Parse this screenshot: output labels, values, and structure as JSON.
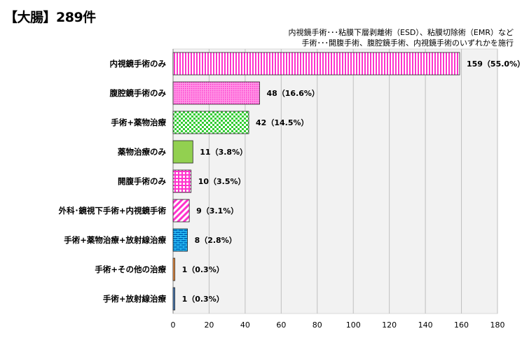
{
  "header": {
    "title": "【大腸】289件",
    "note_line1": "内視鏡手術･･･粘膜下層剥離術（ESD）、粘膜切除術（EMR）など",
    "note_line2": "手術･･･開腹手術、腹腔鏡手術、内視鏡手術のいずれかを施行"
  },
  "chart_data": {
    "type": "bar",
    "orientation": "horizontal",
    "title": "【大腸】289件",
    "xlim": [
      0,
      180
    ],
    "xticks": [
      "0",
      "20",
      "40",
      "60",
      "80",
      "100",
      "120",
      "140",
      "160",
      "180"
    ],
    "grid": true,
    "categories": [
      "内視鏡手術のみ",
      "腹腔鏡手術のみ",
      "手術+薬物治療",
      "薬物治療のみ",
      "開腹手術のみ",
      "外科･鏡視下手術+内視鏡手術",
      "手術+薬物治療+放射線治療",
      "手術+その他の治療",
      "手術+放射線治療"
    ],
    "values": [
      159,
      48,
      42,
      11,
      10,
      9,
      8,
      1,
      1
    ],
    "labels": [
      "159（55.0%）",
      "48（16.6%）",
      "42（14.5%）",
      "11（3.8%）",
      "10（3.5%）",
      "9（3.1%）",
      "8（2.8%）",
      "1（0.3%）",
      "1（0.3%）"
    ],
    "colors": [
      "#ff33cc",
      "#ff33cc",
      "#33cc33",
      "#92d050",
      "#ff33cc",
      "#ff33cc",
      "#0070c0",
      "#f79646",
      "#4f81bd"
    ],
    "patterns": [
      "vertical-stripes",
      "dots",
      "checker",
      "solid",
      "grid",
      "diagonal-stripes",
      "brick",
      "solid",
      "solid"
    ]
  }
}
